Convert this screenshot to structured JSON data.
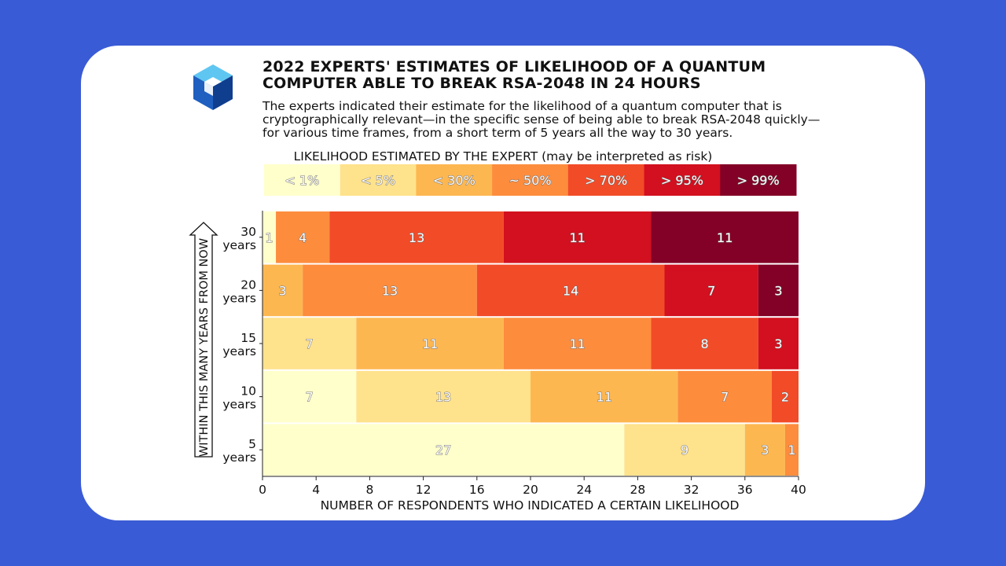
{
  "header": {
    "title": "2022 EXPERTS' ESTIMATES OF LIKELIHOOD OF A QUANTUM COMPUTER ABLE TO BREAK RSA-2048 IN 24 HOURS",
    "subtitle": "The experts indicated their estimate for the likelihood of a quantum computer that is cryptographically relevant—in the specific sense of being able to break RSA-2048 quickly—for various time frames, from a short term of 5 years all the way to 30 years."
  },
  "logo_icon": "cube-logo-icon",
  "chart_data": {
    "type": "bar",
    "orientation": "horizontal",
    "stacked": true,
    "legend_title": "LIKELIHOOD ESTIMATED BY THE EXPERT (may be interpreted as risk)",
    "legend_placement": "top",
    "categories": [
      "30\nyears",
      "20\nyears",
      "15\nyears",
      "10\nyears",
      "5\nyears"
    ],
    "series": [
      {
        "name": "< 1%",
        "color": "#ffffcc",
        "values": [
          1,
          0,
          0,
          7,
          27
        ]
      },
      {
        "name": "< 5%",
        "color": "#ffe28c",
        "values": [
          0,
          0,
          7,
          13,
          9
        ]
      },
      {
        "name": "< 30%",
        "color": "#fdb751",
        "values": [
          0,
          3,
          11,
          11,
          3
        ]
      },
      {
        "name": "~ 50%",
        "color": "#fd8c3d",
        "values": [
          4,
          13,
          11,
          7,
          1
        ]
      },
      {
        "name": "> 70%",
        "color": "#f24b28",
        "values": [
          13,
          14,
          8,
          2,
          0
        ]
      },
      {
        "name": "> 95%",
        "color": "#d2101f",
        "values": [
          11,
          7,
          3,
          0,
          0
        ]
      },
      {
        "name": "> 99%",
        "color": "#830026",
        "values": [
          11,
          3,
          0,
          0,
          0
        ]
      }
    ],
    "xlabel": "NUMBER OF RESPONDENTS WHO INDICATED A CERTAIN LIKELIHOOD",
    "ylabel": "WITHIN THIS MANY YEARS FROM NOW",
    "xlim": [
      0,
      40
    ],
    "xticks": [
      0,
      4,
      8,
      12,
      16,
      20,
      24,
      28,
      32,
      36,
      40
    ],
    "grid": false
  }
}
